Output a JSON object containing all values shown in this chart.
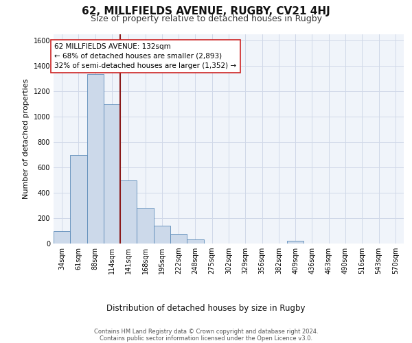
{
  "title": "62, MILLFIELDS AVENUE, RUGBY, CV21 4HJ",
  "subtitle": "Size of property relative to detached houses in Rugby",
  "xlabel": "Distribution of detached houses by size in Rugby",
  "ylabel": "Number of detached properties",
  "bar_labels": [
    "34sqm",
    "61sqm",
    "88sqm",
    "114sqm",
    "141sqm",
    "168sqm",
    "195sqm",
    "222sqm",
    "248sqm",
    "275sqm",
    "302sqm",
    "329sqm",
    "356sqm",
    "382sqm",
    "409sqm",
    "436sqm",
    "463sqm",
    "490sqm",
    "516sqm",
    "543sqm",
    "570sqm"
  ],
  "bar_values": [
    100,
    700,
    1335,
    1100,
    500,
    280,
    140,
    75,
    30,
    0,
    0,
    0,
    0,
    0,
    20,
    0,
    0,
    0,
    0,
    0,
    0
  ],
  "bar_color": "#ccd9ea",
  "bar_edgecolor": "#5b8ab8",
  "vline_color": "#8b1a1a",
  "annotation_text": "62 MILLFIELDS AVENUE: 132sqm\n← 68% of detached houses are smaller (2,893)\n32% of semi-detached houses are larger (1,352) →",
  "annotation_box_edgecolor": "#cc2222",
  "annotation_box_facecolor": "#ffffff",
  "ylim": [
    0,
    1650
  ],
  "yticks": [
    0,
    200,
    400,
    600,
    800,
    1000,
    1200,
    1400,
    1600
  ],
  "footer_line1": "Contains HM Land Registry data © Crown copyright and database right 2024.",
  "footer_line2": "Contains public sector information licensed under the Open Licence v3.0.",
  "title_fontsize": 11,
  "subtitle_fontsize": 9,
  "axis_label_fontsize": 8.5,
  "tick_fontsize": 7,
  "annotation_fontsize": 7.5,
  "footer_fontsize": 6,
  "ylabel_fontsize": 8
}
